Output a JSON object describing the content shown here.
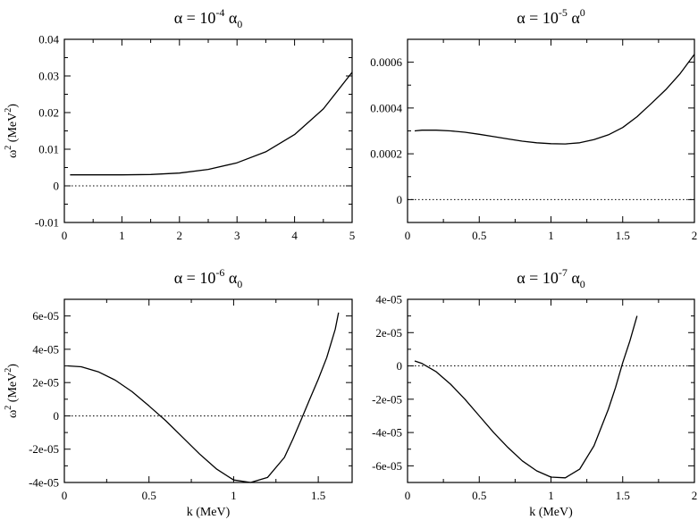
{
  "chart_data": [
    {
      "type": "line",
      "title": {
        "base": "α  = 10",
        "exp": "-4",
        "sym": " α",
        "sub": "0",
        "sup": ""
      },
      "ylabel": {
        "base": "ω",
        "exp": "2",
        "unit": " (MeV",
        "unitexp": "2",
        "close": ")"
      },
      "xlabel": "",
      "xlim": [
        0,
        5
      ],
      "ylim": [
        -0.01,
        0.04
      ],
      "xticks": [
        0,
        1,
        2,
        3,
        4,
        5
      ],
      "xtick_labels": [
        "0",
        "1",
        "2",
        "3",
        "4",
        "5"
      ],
      "yticks": [
        -0.01,
        0,
        0.01,
        0.02,
        0.03,
        0.04
      ],
      "ytick_labels": [
        "-0.01",
        "0",
        "0.01",
        "0.02",
        "0.03",
        "0.04"
      ],
      "zero_line": true,
      "series": [
        {
          "x": [
            0.1,
            0.5,
            1.0,
            1.5,
            2.0,
            2.5,
            3.0,
            3.5,
            4.0,
            4.5,
            5.0
          ],
          "y": [
            0.003,
            0.003,
            0.003,
            0.0031,
            0.0035,
            0.0045,
            0.0063,
            0.0093,
            0.014,
            0.021,
            0.031
          ]
        }
      ]
    },
    {
      "type": "line",
      "title": {
        "base": "α  = 10",
        "exp": "-5",
        "sym": " α",
        "sub": "",
        "sup": "0"
      },
      "ylabel": null,
      "xlabel": "",
      "xlim": [
        0,
        2
      ],
      "ylim": [
        -0.0001,
        0.0007
      ],
      "xticks": [
        0,
        0.5,
        1,
        1.5,
        2
      ],
      "xtick_labels": [
        "0",
        "0.5",
        "1",
        "1.5",
        "2"
      ],
      "yticks": [
        0,
        0.0002,
        0.0004,
        0.0006
      ],
      "ytick_labels": [
        "0",
        "0.0002",
        "0.0004",
        "0.0006"
      ],
      "zero_line": true,
      "series": [
        {
          "x": [
            0.05,
            0.1,
            0.2,
            0.3,
            0.4,
            0.5,
            0.6,
            0.7,
            0.8,
            0.9,
            1.0,
            1.1,
            1.2,
            1.3,
            1.4,
            1.5,
            1.6,
            1.7,
            1.8,
            1.9,
            2.0
          ],
          "y": [
            0.0003,
            0.000303,
            0.000303,
            0.0003,
            0.000294,
            0.000285,
            0.000275,
            0.000265,
            0.000255,
            0.000248,
            0.000244,
            0.000243,
            0.000248,
            0.000262,
            0.000283,
            0.000315,
            0.000362,
            0.00042,
            0.00048,
            0.00055,
            0.000635
          ]
        }
      ]
    },
    {
      "type": "line",
      "title": {
        "base": "α  = 10",
        "exp": "-6",
        "sym": " α",
        "sub": "0",
        "sup": ""
      },
      "ylabel": {
        "base": "ω",
        "exp": "2",
        "unit": " (MeV",
        "unitexp": "2",
        "close": ")"
      },
      "xlabel": "k (MeV)",
      "xlim": [
        0,
        1.7
      ],
      "ylim": [
        -4e-05,
        7e-05
      ],
      "xticks": [
        0,
        0.5,
        1,
        1.5
      ],
      "xtick_labels": [
        "0",
        "0.5",
        "1",
        "1.5"
      ],
      "yticks": [
        -4e-05,
        -2e-05,
        0,
        2e-05,
        4e-05,
        6e-05
      ],
      "ytick_labels": [
        "-4e-05",
        "-2e-05",
        "0",
        "2e-05",
        "4e-05",
        "6e-05"
      ],
      "zero_line": true,
      "series": [
        {
          "x": [
            0.02,
            0.1,
            0.2,
            0.3,
            0.4,
            0.5,
            0.6,
            0.7,
            0.8,
            0.9,
            1.0,
            1.1,
            1.2,
            1.3,
            1.35,
            1.4,
            1.45,
            1.5,
            1.55,
            1.6,
            1.62
          ],
          "y": [
            3e-05,
            2.95e-05,
            2.65e-05,
            2.15e-05,
            1.45e-05,
            6e-06,
            -3e-06,
            -1.3e-05,
            -2.3e-05,
            -3.2e-05,
            -3.85e-05,
            -4e-05,
            -3.7e-05,
            -2.5e-05,
            -1.4e-05,
            -2e-06,
            1e-05,
            2.2e-05,
            3.5e-05,
            5.2e-05,
            6.2e-05
          ]
        }
      ]
    },
    {
      "type": "line",
      "title": {
        "base": "α  = 10",
        "exp": "-7",
        "sym": " α",
        "sub": "0",
        "sup": ""
      },
      "ylabel": null,
      "xlabel": "k (MeV)",
      "xlim": [
        0,
        2
      ],
      "ylim": [
        -7e-05,
        4e-05
      ],
      "xticks": [
        0,
        0.5,
        1,
        1.5,
        2
      ],
      "xtick_labels": [
        "0",
        "0.5",
        "1",
        "1.5",
        "2"
      ],
      "yticks": [
        -6e-05,
        -4e-05,
        -2e-05,
        0,
        2e-05,
        4e-05
      ],
      "ytick_labels": [
        "-6e-05",
        "-4e-05",
        "-2e-05",
        "0",
        "2e-05",
        "4e-05"
      ],
      "zero_line": true,
      "series": [
        {
          "x": [
            0.05,
            0.1,
            0.2,
            0.3,
            0.4,
            0.5,
            0.6,
            0.7,
            0.8,
            0.9,
            1.0,
            1.1,
            1.2,
            1.3,
            1.4,
            1.45,
            1.5,
            1.55,
            1.6
          ],
          "y": [
            3e-06,
            1.5e-06,
            -3.5e-06,
            -1.1e-05,
            -2e-05,
            -3e-05,
            -4e-05,
            -4.9e-05,
            -5.7e-05,
            -6.3e-05,
            -6.68e-05,
            -6.72e-05,
            -6.2e-05,
            -4.8e-05,
            -2.6e-05,
            -1.3e-05,
            2e-06,
            1.5e-05,
            3e-05
          ]
        }
      ]
    }
  ]
}
